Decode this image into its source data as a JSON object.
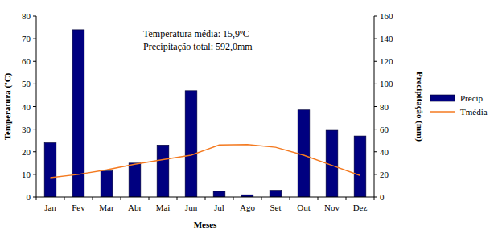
{
  "chart_data": {
    "type": "bar",
    "x_label": "Meses",
    "y_label": "Temperatura (ºC)",
    "y2_label": "Precipitação (mm)",
    "annotations": [
      "Temperatura média: 15,9ºC",
      "Precipitação total: 592,0mm"
    ],
    "categories": [
      "Jan",
      "Fev",
      "Mar",
      "Abr",
      "Mai",
      "Jun",
      "Jul",
      "Ago",
      "Set",
      "Out",
      "Nov",
      "Dez"
    ],
    "series": [
      {
        "name": "Precip.",
        "type": "bar",
        "color": "#000080",
        "axis": "y2",
        "values": [
          48,
          148,
          23,
          30,
          46,
          94,
          5,
          2,
          6,
          77,
          59,
          54
        ]
      },
      {
        "name": "Tmédia",
        "type": "line",
        "color": "#f47a20",
        "values": [
          8.5,
          10,
          12,
          14.5,
          16.5,
          18.5,
          23,
          23.2,
          22,
          18.5,
          14,
          9.5
        ]
      }
    ],
    "ylim": [
      0,
      80
    ],
    "yticks": [
      0,
      10,
      20,
      30,
      40,
      50,
      60,
      70,
      80
    ],
    "y2lim": [
      0,
      160
    ],
    "y2ticks": [
      0,
      20,
      40,
      60,
      80,
      100,
      120,
      140,
      160
    ],
    "legend": "right",
    "grid": false
  }
}
